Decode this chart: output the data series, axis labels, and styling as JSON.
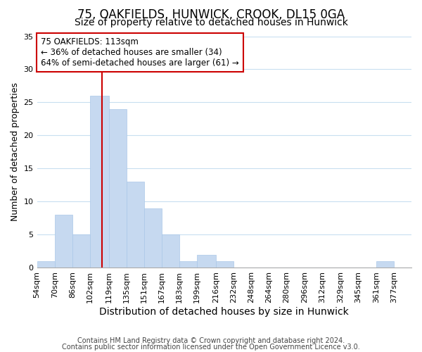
{
  "title": "75, OAKFIELDS, HUNWICK, CROOK, DL15 0GA",
  "subtitle": "Size of property relative to detached houses in Hunwick",
  "xlabel": "Distribution of detached houses by size in Hunwick",
  "ylabel": "Number of detached properties",
  "bin_labels": [
    "54sqm",
    "70sqm",
    "86sqm",
    "102sqm",
    "119sqm",
    "135sqm",
    "151sqm",
    "167sqm",
    "183sqm",
    "199sqm",
    "216sqm",
    "232sqm",
    "248sqm",
    "264sqm",
    "280sqm",
    "296sqm",
    "312sqm",
    "329sqm",
    "345sqm",
    "361sqm",
    "377sqm"
  ],
  "bar_heights": [
    1,
    8,
    5,
    26,
    24,
    13,
    9,
    5,
    1,
    2,
    1,
    0,
    0,
    0,
    0,
    0,
    0,
    0,
    0,
    1,
    0
  ],
  "bar_color": "#c6d9f0",
  "bar_edge_color": "#aac8e8",
  "grid_color": "#c8dff0",
  "reference_line_x": 113,
  "bin_edges": [
    54,
    70,
    86,
    102,
    119,
    135,
    151,
    167,
    183,
    199,
    216,
    232,
    248,
    264,
    280,
    296,
    312,
    329,
    345,
    361,
    377,
    393
  ],
  "annotation_title": "75 OAKFIELDS: 113sqm",
  "annotation_line1": "← 36% of detached houses are smaller (34)",
  "annotation_line2": "64% of semi-detached houses are larger (61) →",
  "annotation_box_color": "#ffffff",
  "annotation_box_edge": "#cc0000",
  "vline_color": "#cc0000",
  "ylim": [
    0,
    35
  ],
  "yticks": [
    0,
    5,
    10,
    15,
    20,
    25,
    30,
    35
  ],
  "footer1": "Contains HM Land Registry data © Crown copyright and database right 2024.",
  "footer2": "Contains public sector information licensed under the Open Government Licence v3.0.",
  "title_fontsize": 12,
  "subtitle_fontsize": 10,
  "xlabel_fontsize": 10,
  "ylabel_fontsize": 9,
  "tick_fontsize": 8,
  "footer_fontsize": 7,
  "annotation_fontsize": 8.5
}
